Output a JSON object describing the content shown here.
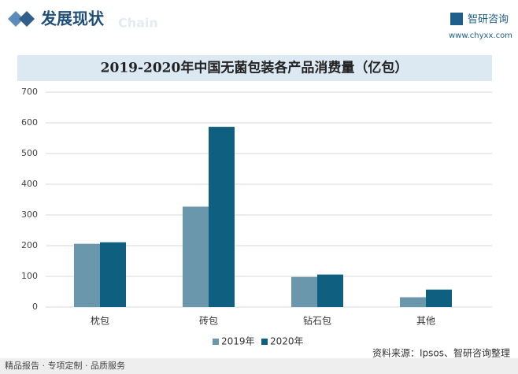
{
  "header": {
    "title": "发展现状",
    "watermark": "Chain",
    "brand": "智研咨询",
    "site": "www.chyxx.com"
  },
  "chart_data": {
    "type": "bar",
    "title": "2019-2020年中国无菌包装各产品消费量（亿包）",
    "categories": [
      "枕包",
      "砖包",
      "钻石包",
      "其他"
    ],
    "series": [
      {
        "name": "2019年",
        "color": "#6b97ac",
        "values": [
          206,
          327,
          98,
          32
        ]
      },
      {
        "name": "2020年",
        "color": "#0e5f80",
        "values": [
          211,
          587,
          106,
          57
        ]
      }
    ],
    "ylim": [
      0,
      700
    ],
    "yticks": [
      0,
      100,
      200,
      300,
      400,
      500,
      600,
      700
    ],
    "grid": true,
    "legend": "bottom"
  },
  "footer": {
    "slogan": "精品报告 · 专项定制 · 品质服务",
    "source": "资料来源：Ipsos、智研咨询整理"
  }
}
